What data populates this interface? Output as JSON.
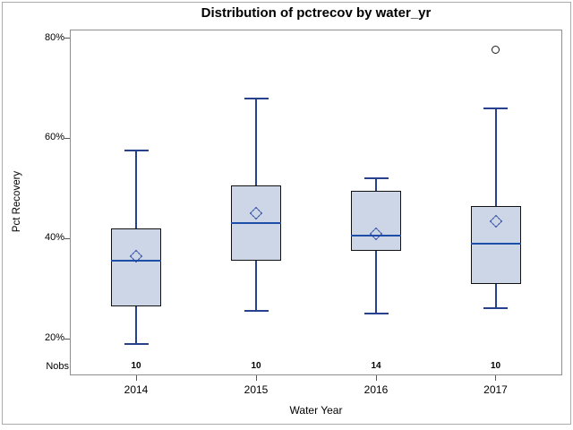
{
  "title": "Distribution of pctrecov by water_yr",
  "y_axis": {
    "label": "Pct Recovery"
  },
  "x_axis": {
    "label": "Water Year"
  },
  "nobs_label": "Nobs",
  "chart_data": {
    "type": "boxplot",
    "title": "Distribution of pctrecov by water_yr",
    "xlabel": "Water Year",
    "ylabel": "Pct Recovery",
    "ylim": [
      13,
      82
    ],
    "yticks": [
      20,
      40,
      60,
      80
    ],
    "ytick_labels": [
      "20%",
      "40%",
      "60%",
      "80%"
    ],
    "grid": false,
    "legend": "none",
    "categories": [
      "2014",
      "2015",
      "2016",
      "2017"
    ],
    "nobs": [
      10,
      10,
      14,
      10
    ],
    "series": [
      {
        "category": "2014",
        "whisker_low": 19,
        "q1": 26.5,
        "median": 35.5,
        "mean": 36.5,
        "q3": 42,
        "whisker_high": 57.5,
        "outliers": []
      },
      {
        "category": "2015",
        "whisker_low": 25.5,
        "q1": 35.5,
        "median": 43,
        "mean": 45,
        "q3": 50.5,
        "whisker_high": 68,
        "outliers": []
      },
      {
        "category": "2016",
        "whisker_low": 25,
        "q1": 37.5,
        "median": 40.5,
        "mean": 41,
        "q3": 49.5,
        "whisker_high": 52,
        "outliers": []
      },
      {
        "category": "2017",
        "whisker_low": 26,
        "q1": 31,
        "median": 39,
        "mean": 43.5,
        "q3": 46.5,
        "whisker_high": 66,
        "outliers": [
          77.5
        ]
      }
    ],
    "colors": {
      "box_fill": "#cdd6e6",
      "box_border": "#111111",
      "whisker": "#27418f",
      "median": "#1d4ea8",
      "mean_marker": "#2a49a0",
      "outlier_border": "#1a1a1a",
      "frame": "#8e8e8e",
      "page_border": "#ababab"
    }
  }
}
